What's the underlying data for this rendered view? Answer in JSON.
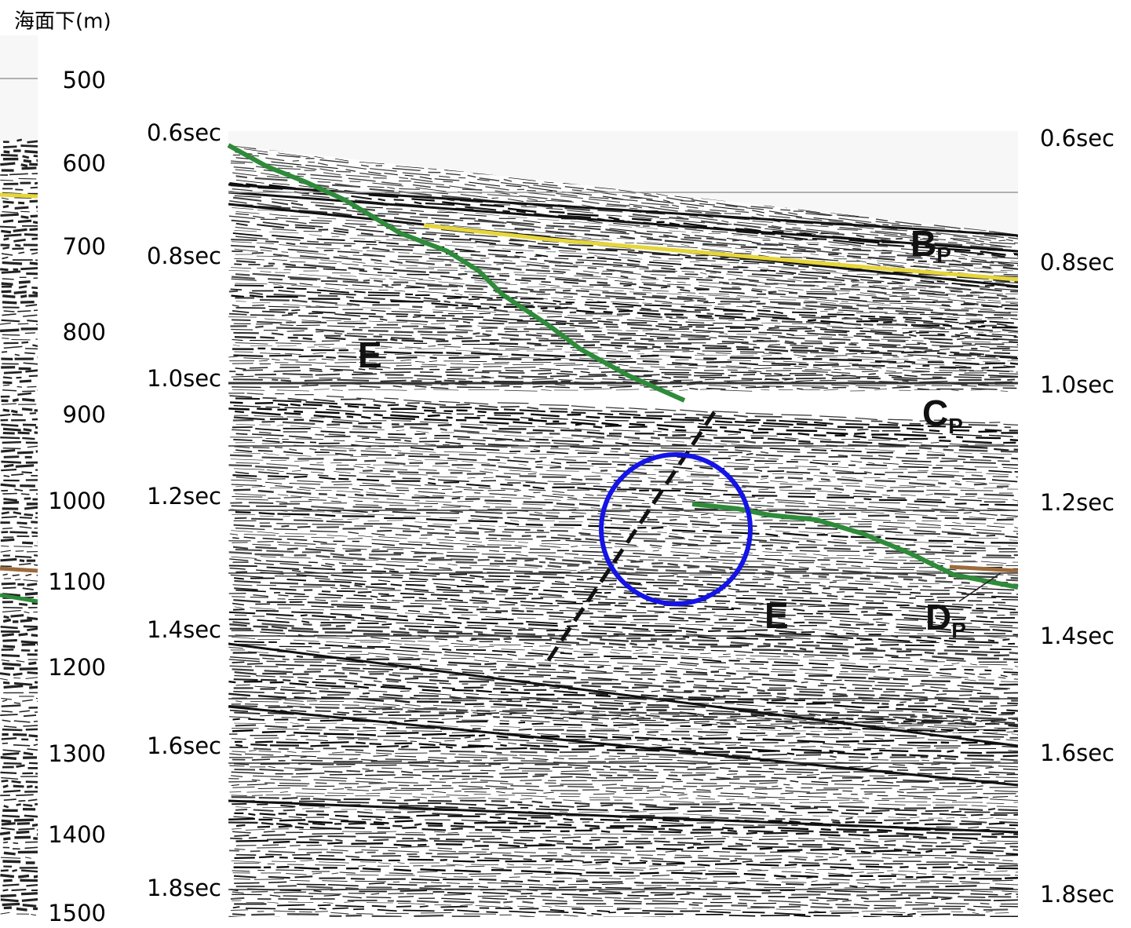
{
  "header": {
    "title": "海面下(m)"
  },
  "depth_labels": [
    "500",
    "600",
    "700",
    "800",
    "900",
    "1000",
    "1100",
    "1200",
    "1300",
    "1400",
    "1500"
  ],
  "left_time_labels": [
    "0.6sec",
    "0.8sec",
    "1.0sec",
    "1.2sec",
    "1.4sec",
    "1.6sec",
    "1.8sec"
  ],
  "right_time_labels": [
    "0.6sec",
    "0.8sec",
    "1.0sec",
    "1.2sec",
    "1.4sec",
    "1.6sec",
    "1.8sec"
  ],
  "annotations": [
    {
      "text": "E"
    },
    {
      "text": "E"
    },
    {
      "text": "B",
      "sub": "P"
    },
    {
      "text": "C",
      "sub": "P"
    },
    {
      "text": "D",
      "sub": "P"
    }
  ]
}
